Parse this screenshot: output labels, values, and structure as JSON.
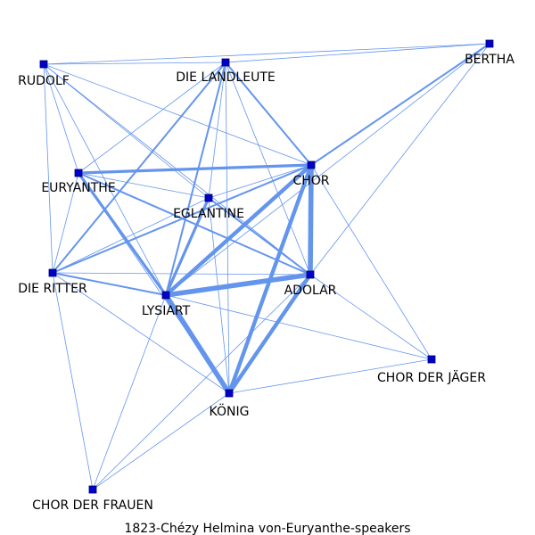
{
  "caption": "1823-Chézy  Helmina  von-Euryanthe-speakers",
  "colors": {
    "edge": "#6495ED",
    "node_fill": "#0000CC",
    "node_stroke": "#000066",
    "label": "#000000"
  },
  "nodes": [
    {
      "id": "rudolf",
      "label": "RUDOLF"
    },
    {
      "id": "landleute",
      "label": "DIE LANDLEUTE"
    },
    {
      "id": "bertha",
      "label": "BERTHA"
    },
    {
      "id": "euryanthe",
      "label": "EURYANTHE"
    },
    {
      "id": "chor",
      "label": "CHOR"
    },
    {
      "id": "eglantine",
      "label": "EGLANTINE"
    },
    {
      "id": "ritter",
      "label": "DIE RITTER"
    },
    {
      "id": "adolar",
      "label": "ADOLAR"
    },
    {
      "id": "lysiart",
      "label": "LYSIART"
    },
    {
      "id": "jaeger",
      "label": "CHOR DER JÄGER"
    },
    {
      "id": "koenig",
      "label": "KÖNIG"
    },
    {
      "id": "frauen",
      "label": "CHOR DER FRAUEN"
    }
  ],
  "edges": [
    {
      "source": "rudolf",
      "target": "landleute",
      "weight": 1
    },
    {
      "source": "rudolf",
      "target": "bertha",
      "weight": 1
    },
    {
      "source": "rudolf",
      "target": "euryanthe",
      "weight": 1
    },
    {
      "source": "rudolf",
      "target": "chor",
      "weight": 1
    },
    {
      "source": "rudolf",
      "target": "eglantine",
      "weight": 1
    },
    {
      "source": "rudolf",
      "target": "ritter",
      "weight": 1
    },
    {
      "source": "rudolf",
      "target": "lysiart",
      "weight": 1
    },
    {
      "source": "rudolf",
      "target": "adolar",
      "weight": 1
    },
    {
      "source": "landleute",
      "target": "bertha",
      "weight": 1
    },
    {
      "source": "landleute",
      "target": "chor",
      "weight": 2
    },
    {
      "source": "landleute",
      "target": "euryanthe",
      "weight": 1
    },
    {
      "source": "landleute",
      "target": "eglantine",
      "weight": 1
    },
    {
      "source": "landleute",
      "target": "lysiart",
      "weight": 2
    },
    {
      "source": "landleute",
      "target": "ritter",
      "weight": 2
    },
    {
      "source": "landleute",
      "target": "adolar",
      "weight": 1
    },
    {
      "source": "landleute",
      "target": "koenig",
      "weight": 1
    },
    {
      "source": "bertha",
      "target": "chor",
      "weight": 2
    },
    {
      "source": "bertha",
      "target": "adolar",
      "weight": 1
    },
    {
      "source": "bertha",
      "target": "lysiart",
      "weight": 1
    },
    {
      "source": "euryanthe",
      "target": "chor",
      "weight": 3
    },
    {
      "source": "euryanthe",
      "target": "eglantine",
      "weight": 1
    },
    {
      "source": "euryanthe",
      "target": "lysiart",
      "weight": 3
    },
    {
      "source": "euryanthe",
      "target": "adolar",
      "weight": 2
    },
    {
      "source": "euryanthe",
      "target": "ritter",
      "weight": 1
    },
    {
      "source": "euryanthe",
      "target": "koenig",
      "weight": 1
    },
    {
      "source": "chor",
      "target": "eglantine",
      "weight": 1
    },
    {
      "source": "chor",
      "target": "ritter",
      "weight": 2
    },
    {
      "source": "chor",
      "target": "lysiart",
      "weight": 4
    },
    {
      "source": "chor",
      "target": "adolar",
      "weight": 5
    },
    {
      "source": "chor",
      "target": "koenig",
      "weight": 4
    },
    {
      "source": "chor",
      "target": "jaeger",
      "weight": 1
    },
    {
      "source": "eglantine",
      "target": "ritter",
      "weight": 1
    },
    {
      "source": "eglantine",
      "target": "lysiart",
      "weight": 3
    },
    {
      "source": "eglantine",
      "target": "adolar",
      "weight": 2
    },
    {
      "source": "eglantine",
      "target": "koenig",
      "weight": 1
    },
    {
      "source": "ritter",
      "target": "lysiart",
      "weight": 2
    },
    {
      "source": "ritter",
      "target": "adolar",
      "weight": 1
    },
    {
      "source": "ritter",
      "target": "koenig",
      "weight": 1
    },
    {
      "source": "ritter",
      "target": "frauen",
      "weight": 1
    },
    {
      "source": "lysiart",
      "target": "adolar",
      "weight": 5
    },
    {
      "source": "lysiart",
      "target": "koenig",
      "weight": 5
    },
    {
      "source": "lysiart",
      "target": "jaeger",
      "weight": 1
    },
    {
      "source": "lysiart",
      "target": "frauen",
      "weight": 1
    },
    {
      "source": "adolar",
      "target": "koenig",
      "weight": 4
    },
    {
      "source": "adolar",
      "target": "jaeger",
      "weight": 1
    },
    {
      "source": "adolar",
      "target": "frauen",
      "weight": 1
    },
    {
      "source": "koenig",
      "target": "jaeger",
      "weight": 1
    },
    {
      "source": "koenig",
      "target": "frauen",
      "weight": 1
    }
  ]
}
